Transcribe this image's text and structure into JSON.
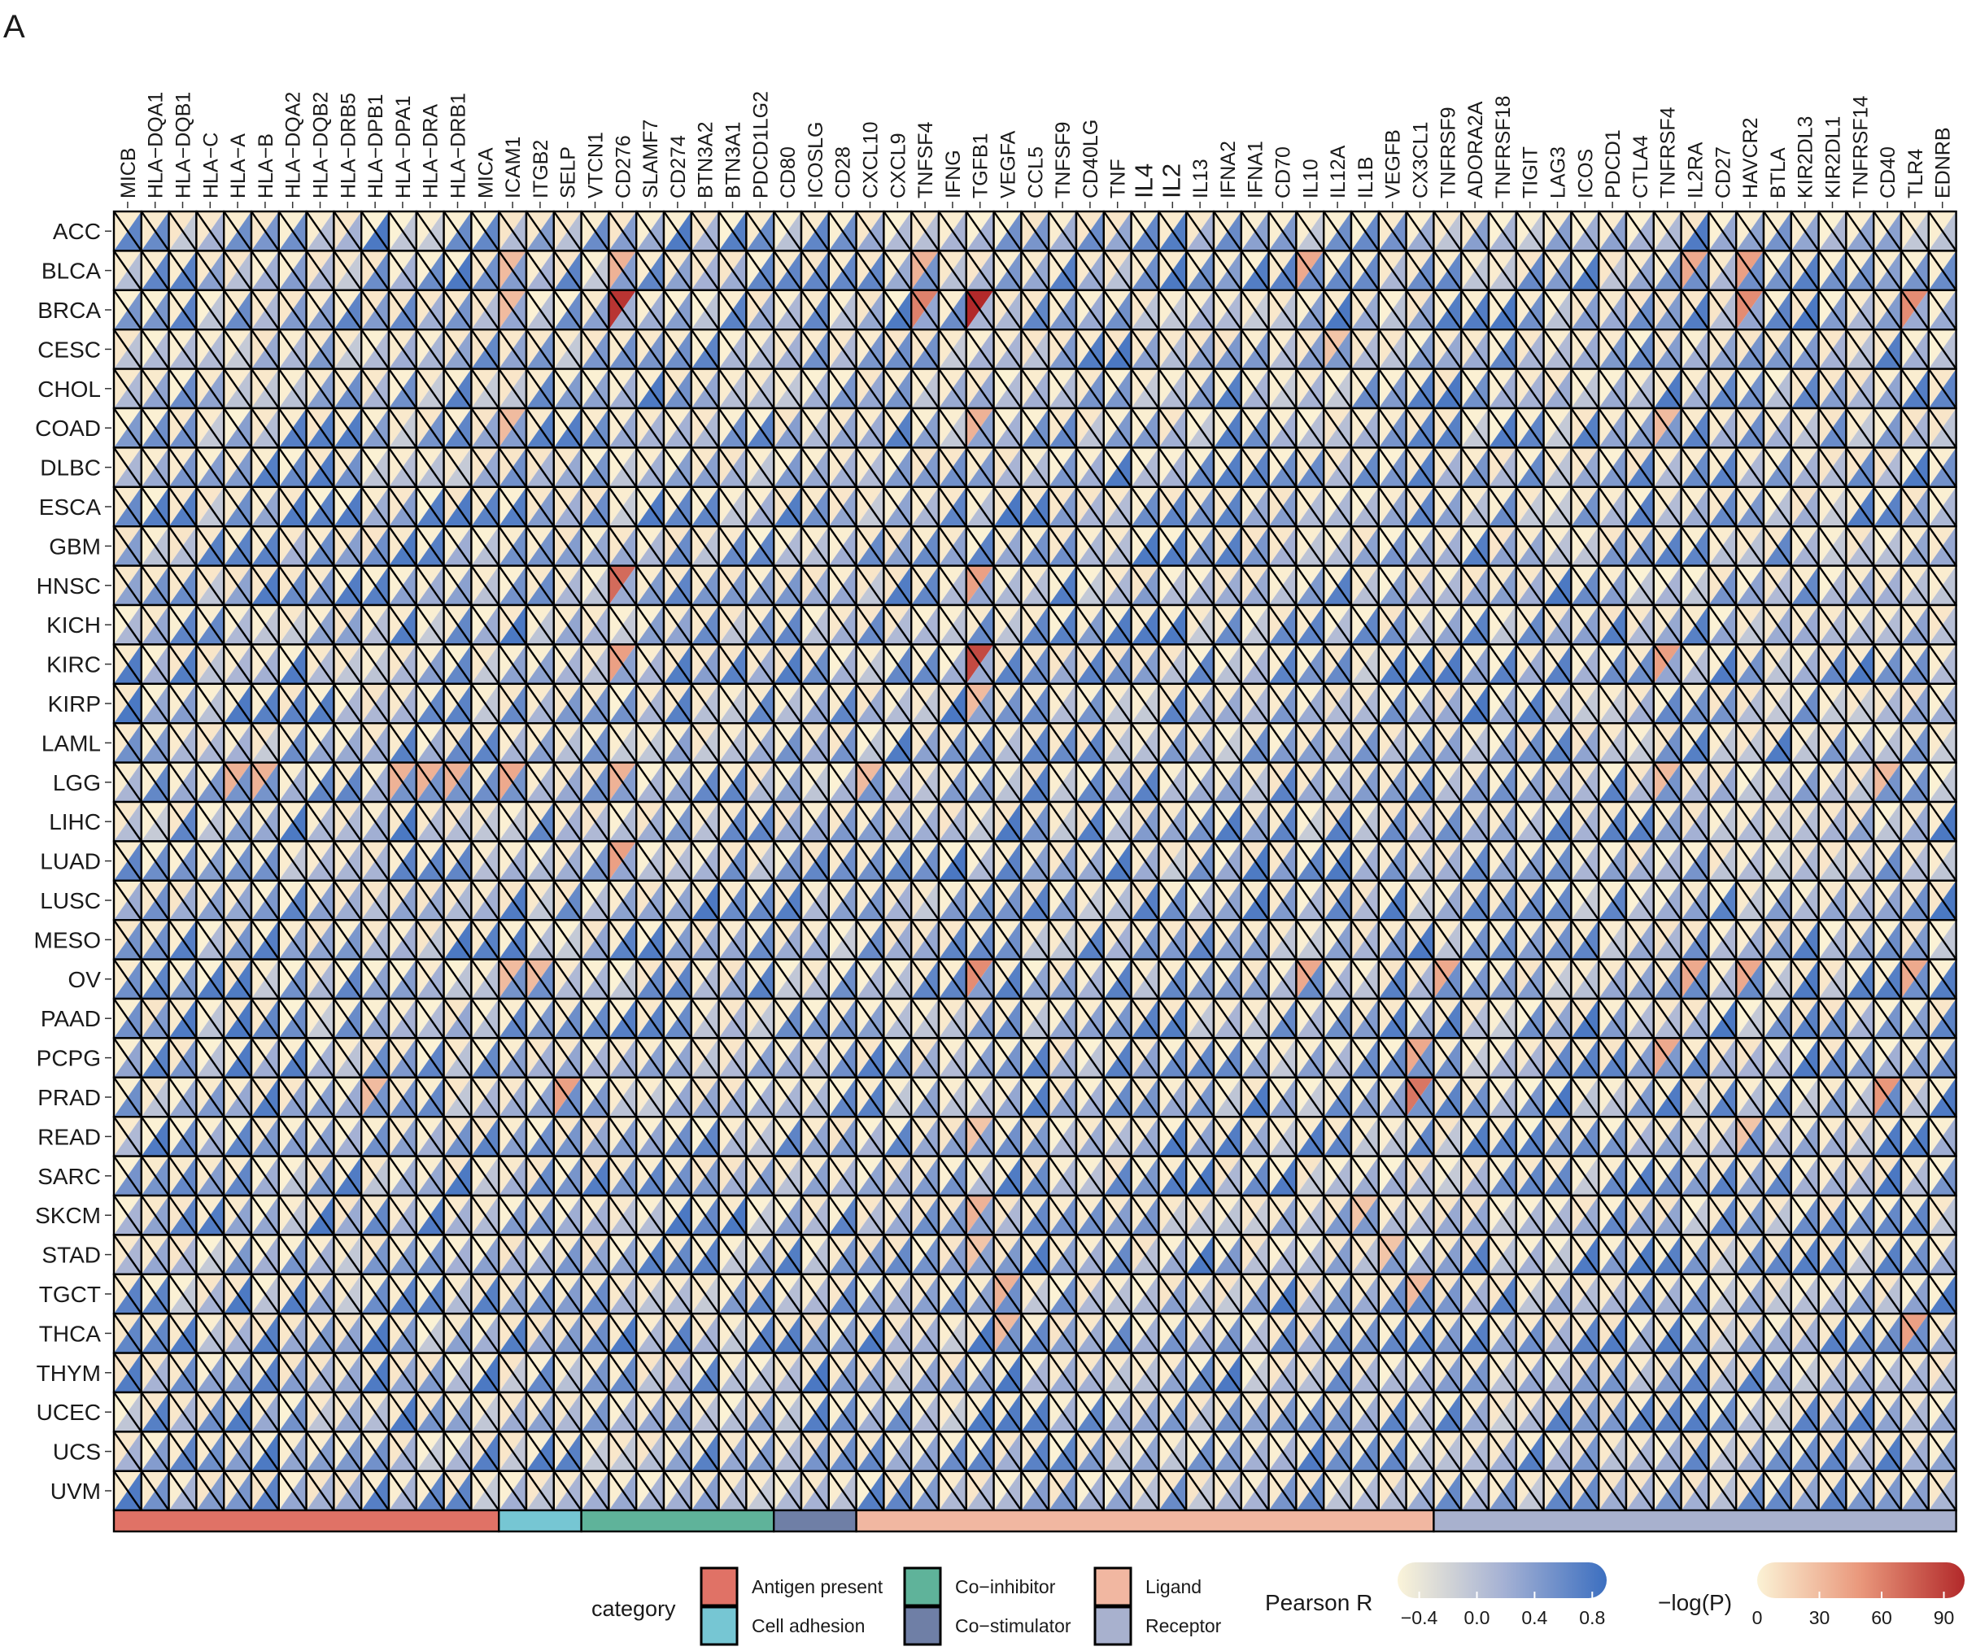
{
  "panel_label": "A",
  "chart_data": {
    "type": "heatmap",
    "cell_style": "split-triangle",
    "upper_left_triangle": "-log(P)",
    "lower_right_triangle": "Pearson R",
    "rows": [
      "ACC",
      "BLCA",
      "BRCA",
      "CESC",
      "CHOL",
      "COAD",
      "DLBC",
      "ESCA",
      "GBM",
      "HNSC",
      "KICH",
      "KIRC",
      "KIRP",
      "LAML",
      "LGG",
      "LIHC",
      "LUAD",
      "LUSC",
      "MESO",
      "OV",
      "PAAD",
      "PCPG",
      "PRAD",
      "READ",
      "SARC",
      "SKCM",
      "STAD",
      "TGCT",
      "THCA",
      "THYM",
      "UCEC",
      "UCS",
      "UVM"
    ],
    "columns": [
      "MICB",
      "HLA−DQA1",
      "HLA−DQB1",
      "HLA−C",
      "HLA−A",
      "HLA−B",
      "HLA−DQA2",
      "HLA−DQB2",
      "HLA−DRB5",
      "HLA−DPB1",
      "HLA−DPA1",
      "HLA−DRA",
      "HLA−DRB1",
      "MICA",
      "ICAM1",
      "ITGB2",
      "SELP",
      "VTCN1",
      "CD276",
      "SLAMF7",
      "CD274",
      "BTN3A2",
      "BTN3A1",
      "PDCD1LG2",
      "CD80",
      "ICOSLG",
      "CD28",
      "CXCL10",
      "CXCL9",
      "TNFSF4",
      "IFNG",
      "TGFB1",
      "VEGFA",
      "CCL5",
      "TNFSF9",
      "CD40LG",
      "TNF",
      "IL4",
      "IL2",
      "IL13",
      "IFNA2",
      "IFNA1",
      "CD70",
      "IL10",
      "IL12A",
      "IL1B",
      "VEGFB",
      "CX3CL1",
      "TNFRSF9",
      "ADORA2A",
      "TNFRSF18",
      "TIGIT",
      "LAG3",
      "ICOS",
      "PDCD1",
      "CTLA4",
      "TNFRSF4",
      "IL2RA",
      "CD27",
      "HAVCR2",
      "BTLA",
      "KIR2DL3",
      "KIR2DL1",
      "TNFRSF14",
      "CD40",
      "TLR4",
      "EDNRB"
    ],
    "column_categories": [
      {
        "name": "Antigen present",
        "start": 0,
        "end": 13,
        "color": "#E07266"
      },
      {
        "name": "Cell adhesion",
        "start": 14,
        "end": 16,
        "color": "#76C6D3"
      },
      {
        "name": "Co−inhibitor",
        "start": 17,
        "end": 23,
        "color": "#5FB39A"
      },
      {
        "name": "Co−stimulator",
        "start": 24,
        "end": 26,
        "color": "#6F7FA6"
      },
      {
        "name": "Ligand",
        "start": 27,
        "end": 47,
        "color": "#F1B7A1"
      },
      {
        "name": "Receptor",
        "start": 48,
        "end": 66,
        "color": "#A8B1CE"
      }
    ],
    "highlights": [
      {
        "row": "BRCA",
        "column": "CD276",
        "neglogp": 95,
        "r": 0.2
      },
      {
        "row": "BRCA",
        "column": "TGFB1",
        "neglogp": 100,
        "r": 0.15
      },
      {
        "row": "BRCA",
        "column": "TNFSF4",
        "neglogp": 60,
        "r": 0.3
      },
      {
        "row": "BRCA",
        "column": "HAVCR2",
        "neglogp": 55,
        "r": 0.3
      },
      {
        "row": "BRCA",
        "column": "TLR4",
        "neglogp": 55,
        "r": 0.25
      },
      {
        "row": "BRCA",
        "column": "ICAM1",
        "neglogp": 30,
        "r": 0.3
      },
      {
        "row": "BLCA",
        "column": "CD276",
        "neglogp": 35,
        "r": 0.4
      },
      {
        "row": "BLCA",
        "column": "TNFSF4",
        "neglogp": 35,
        "r": 0.5
      },
      {
        "row": "BLCA",
        "column": "IL10",
        "neglogp": 40,
        "r": 0.55
      },
      {
        "row": "BLCA",
        "column": "IL2RA",
        "neglogp": 40,
        "r": 0.55
      },
      {
        "row": "BLCA",
        "column": "HAVCR2",
        "neglogp": 45,
        "r": 0.55
      },
      {
        "row": "BLCA",
        "column": "ICAM1",
        "neglogp": 30,
        "r": 0.4
      },
      {
        "row": "HNSC",
        "column": "CD276",
        "neglogp": 70,
        "r": 0.25
      },
      {
        "row": "HNSC",
        "column": "TGFB1",
        "neglogp": 45,
        "r": 0.3
      },
      {
        "row": "KIRC",
        "column": "TGFB1",
        "neglogp": 85,
        "r": 0.25
      },
      {
        "row": "KIRC",
        "column": "CD276",
        "neglogp": 45,
        "r": 0.35
      },
      {
        "row": "KIRC",
        "column": "TNFRSF4",
        "neglogp": 45,
        "r": 0.3
      },
      {
        "row": "KIRP",
        "column": "TGFB1",
        "neglogp": 30,
        "r": 0.35
      },
      {
        "row": "LUAD",
        "column": "CD276",
        "neglogp": 45,
        "r": 0.3
      },
      {
        "row": "OV",
        "column": "TGFB1",
        "neglogp": 55,
        "r": 0.4
      },
      {
        "row": "OV",
        "column": "ICAM1",
        "neglogp": 30,
        "r": 0.5
      },
      {
        "row": "OV",
        "column": "ITGB2",
        "neglogp": 30,
        "r": 0.55
      },
      {
        "row": "OV",
        "column": "IL10",
        "neglogp": 40,
        "r": 0.6
      },
      {
        "row": "OV",
        "column": "TNFRSF9",
        "neglogp": 40,
        "r": 0.55
      },
      {
        "row": "OV",
        "column": "IL2RA",
        "neglogp": 40,
        "r": 0.6
      },
      {
        "row": "OV",
        "column": "HAVCR2",
        "neglogp": 40,
        "r": 0.6
      },
      {
        "row": "OV",
        "column": "TLR4",
        "neglogp": 40,
        "r": 0.55
      },
      {
        "row": "PCPG",
        "column": "CX3CL1",
        "neglogp": 40,
        "r": 0.5
      },
      {
        "row": "PCPG",
        "column": "TNFRSF4",
        "neglogp": 40,
        "r": 0.45
      },
      {
        "row": "PRAD",
        "column": "CX3CL1",
        "neglogp": 65,
        "r": 0.5
      },
      {
        "row": "PRAD",
        "column": "SELP",
        "neglogp": 45,
        "r": 0.55
      },
      {
        "row": "PRAD",
        "column": "CD40",
        "neglogp": 50,
        "r": 0.6
      },
      {
        "row": "PRAD",
        "column": "HLA−DPB1",
        "neglogp": 30,
        "r": 0.5
      },
      {
        "row": "SKCM",
        "column": "TGFB1",
        "neglogp": 35,
        "r": 0.35
      },
      {
        "row": "TGCT",
        "column": "VEGFA",
        "neglogp": 35,
        "r": 0.55
      },
      {
        "row": "TGCT",
        "column": "CX3CL1",
        "neglogp": 30,
        "r": 0.6
      },
      {
        "row": "THCA",
        "column": "TLR4",
        "neglogp": 45,
        "r": 0.55
      },
      {
        "row": "THCA",
        "column": "VEGFA",
        "neglogp": 30,
        "r": 0.5
      },
      {
        "row": "LGG",
        "column": "ICAM1",
        "neglogp": 40,
        "r": 0.5
      },
      {
        "row": "LGG",
        "column": "HLA−A",
        "neglogp": 35,
        "r": 0.5
      },
      {
        "row": "LGG",
        "column": "HLA−B",
        "neglogp": 35,
        "r": 0.5
      },
      {
        "row": "LGG",
        "column": "HLA−DRA",
        "neglogp": 35,
        "r": 0.5
      },
      {
        "row": "LGG",
        "column": "HLA−DPA1",
        "neglogp": 35,
        "r": 0.5
      },
      {
        "row": "LGG",
        "column": "HLA−DRB1",
        "neglogp": 35,
        "r": 0.5
      },
      {
        "row": "LGG",
        "column": "CD276",
        "neglogp": 35,
        "r": 0.4
      },
      {
        "row": "LGG",
        "column": "CXCL10",
        "neglogp": 30,
        "r": 0.5
      },
      {
        "row": "LGG",
        "column": "TNFRSF4",
        "neglogp": 30,
        "r": 0.5
      },
      {
        "row": "LGG",
        "column": "CD40",
        "neglogp": 30,
        "r": 0.5
      },
      {
        "row": "COAD",
        "column": "ICAM1",
        "neglogp": 30,
        "r": 0.4
      },
      {
        "row": "COAD",
        "column": "TGFB1",
        "neglogp": 35,
        "r": 0.35
      },
      {
        "row": "COAD",
        "column": "TNFRSF4",
        "neglogp": 30,
        "r": 0.45
      },
      {
        "row": "READ",
        "column": "TGFB1",
        "neglogp": 25,
        "r": 0.35
      },
      {
        "row": "READ",
        "column": "HAVCR2",
        "neglogp": 25,
        "r": 0.55
      },
      {
        "row": "STAD",
        "column": "TGFB1",
        "neglogp": 25,
        "r": 0.35
      },
      {
        "row": "CESC",
        "column": "IL12A",
        "neglogp": 25,
        "r": 0.45
      },
      {
        "row": "SKCM",
        "column": "IL1B",
        "neglogp": 25,
        "r": 0.45
      },
      {
        "row": "STAD",
        "column": "VEGFB",
        "neglogp": 25,
        "r": 0.45
      }
    ],
    "default_neglogp": 3,
    "default_r": 0.35,
    "legend": {
      "category_title": "category",
      "category_items": [
        {
          "label": "Antigen present",
          "color": "#E07266"
        },
        {
          "label": "Cell adhesion",
          "color": "#76C6D3"
        },
        {
          "label": "Co−inhibitor",
          "color": "#5FB39A"
        },
        {
          "label": "Co−stimulator",
          "color": "#6F7FA6"
        },
        {
          "label": "Ligand",
          "color": "#F1B7A1"
        },
        {
          "label": "Receptor",
          "color": "#A8B1CE"
        }
      ],
      "r_title": "Pearson R",
      "r_ticks": [
        "−0.4",
        "0.0",
        "0.4",
        "0.8"
      ],
      "r_tick_values": [
        -0.4,
        0.0,
        0.4,
        0.8
      ],
      "r_range": [
        -0.55,
        0.9
      ],
      "r_colors": [
        "#FBF4D9",
        "#A6B2D4",
        "#3C6FC0"
      ],
      "p_title": "−log(P)",
      "p_ticks": [
        "0",
        "30",
        "60",
        "90"
      ],
      "p_tick_values": [
        0,
        30,
        60,
        90
      ],
      "p_range": [
        0,
        100
      ],
      "p_colors": [
        "#FBF2D5",
        "#E9977B",
        "#B2292A"
      ]
    }
  }
}
